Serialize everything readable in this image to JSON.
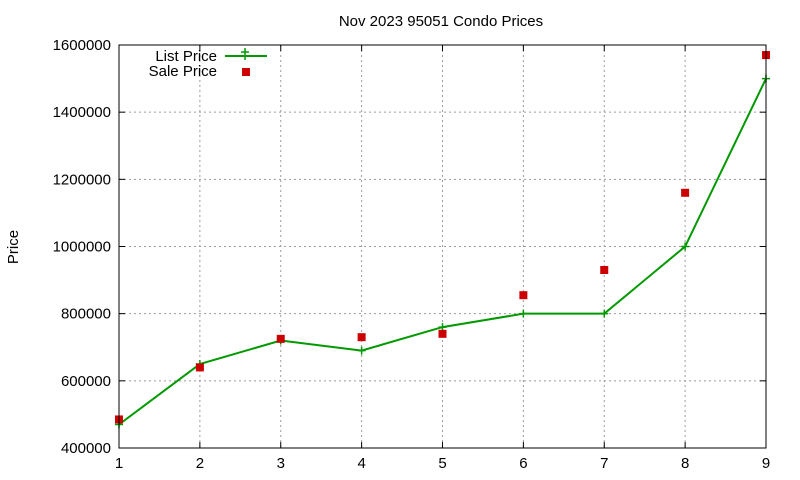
{
  "chart_data": {
    "type": "line",
    "title": "Nov 2023 95051 Condo Prices",
    "xlabel": "",
    "ylabel": "Price",
    "xlim": [
      1,
      9
    ],
    "ylim": [
      400000,
      1600000
    ],
    "x_ticks": [
      "1",
      "2",
      "3",
      "4",
      "5",
      "6",
      "7",
      "8",
      "9"
    ],
    "y_ticks": [
      "400000",
      "600000",
      "800000",
      "1000000",
      "1200000",
      "1400000",
      "1600000"
    ],
    "grid": true,
    "legend_position": "top-left",
    "series": [
      {
        "name": "List Price",
        "style": "line-with-plus-markers",
        "color": "#009900",
        "x": [
          1,
          2,
          3,
          4,
          5,
          6,
          7,
          8,
          9
        ],
        "y": [
          470000,
          650000,
          720000,
          690000,
          760000,
          800000,
          800000,
          1000000,
          1500000
        ]
      },
      {
        "name": "Sale Price",
        "style": "square-markers",
        "color": "#cc0000",
        "x": [
          1,
          2,
          3,
          4,
          5,
          6,
          7,
          8,
          9
        ],
        "y": [
          485000,
          640000,
          725000,
          730000,
          740000,
          855000,
          930000,
          1160000,
          1570000
        ]
      }
    ]
  }
}
